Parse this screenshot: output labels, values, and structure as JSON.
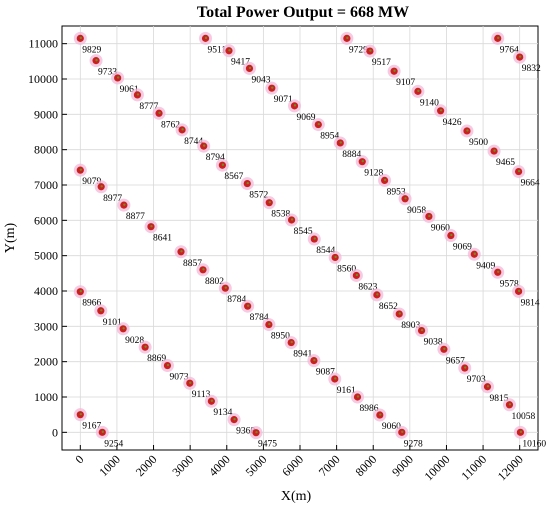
{
  "chart_data": {
    "type": "scatter",
    "title": "Total Power Output = 668 MW",
    "xlabel": "X(m)",
    "ylabel": "Y(m)",
    "xlim": [
      -500,
      12500
    ],
    "ylim": [
      -500,
      11500
    ],
    "xticks": [
      0,
      1000,
      2000,
      3000,
      4000,
      5000,
      6000,
      7000,
      8000,
      9000,
      10000,
      11000,
      12000
    ],
    "yticks": [
      0,
      1000,
      2000,
      3000,
      4000,
      5000,
      6000,
      7000,
      8000,
      9000,
      10000,
      11000
    ],
    "grid": true,
    "marker_color": "#cc1f1f",
    "marker_halo_color": "#f2b8d8",
    "points": [
      {
        "x": 0,
        "y": 11150,
        "label": "9829"
      },
      {
        "x": 430,
        "y": 10520,
        "label": "9733"
      },
      {
        "x": 1020,
        "y": 10030,
        "label": "9061"
      },
      {
        "x": 1560,
        "y": 9550,
        "label": "8777"
      },
      {
        "x": 2150,
        "y": 9030,
        "label": "8762"
      },
      {
        "x": 2780,
        "y": 8560,
        "label": "8744"
      },
      {
        "x": 3370,
        "y": 8100,
        "label": "8794"
      },
      {
        "x": 3880,
        "y": 7560,
        "label": "8567"
      },
      {
        "x": 4560,
        "y": 7040,
        "label": "8572"
      },
      {
        "x": 5160,
        "y": 6500,
        "label": "8538"
      },
      {
        "x": 5770,
        "y": 6010,
        "label": "8545"
      },
      {
        "x": 6390,
        "y": 5470,
        "label": "8544"
      },
      {
        "x": 6960,
        "y": 4950,
        "label": "8560"
      },
      {
        "x": 7540,
        "y": 4440,
        "label": "8623"
      },
      {
        "x": 8100,
        "y": 3890,
        "label": "8652"
      },
      {
        "x": 8710,
        "y": 3350,
        "label": "8903"
      },
      {
        "x": 9320,
        "y": 2880,
        "label": "9038"
      },
      {
        "x": 9930,
        "y": 2350,
        "label": "9657"
      },
      {
        "x": 10500,
        "y": 1820,
        "label": "9703"
      },
      {
        "x": 11120,
        "y": 1290,
        "label": "9815"
      },
      {
        "x": 11720,
        "y": 780,
        "label": "10058"
      },
      {
        "x": 12020,
        "y": 0,
        "label": "10160"
      },
      {
        "x": 3420,
        "y": 11150,
        "label": "9511"
      },
      {
        "x": 4060,
        "y": 10800,
        "label": "9417"
      },
      {
        "x": 4620,
        "y": 10300,
        "label": "9043"
      },
      {
        "x": 5230,
        "y": 9740,
        "label": "9071"
      },
      {
        "x": 5850,
        "y": 9240,
        "label": "9069"
      },
      {
        "x": 6500,
        "y": 8710,
        "label": "8954"
      },
      {
        "x": 7100,
        "y": 8190,
        "label": "8884"
      },
      {
        "x": 7700,
        "y": 7660,
        "label": "9128"
      },
      {
        "x": 8310,
        "y": 7130,
        "label": "8953"
      },
      {
        "x": 8870,
        "y": 6610,
        "label": "9058"
      },
      {
        "x": 9520,
        "y": 6110,
        "label": "9060"
      },
      {
        "x": 10120,
        "y": 5570,
        "label": "9069"
      },
      {
        "x": 10760,
        "y": 5040,
        "label": "9409"
      },
      {
        "x": 11400,
        "y": 4530,
        "label": "9578"
      },
      {
        "x": 11970,
        "y": 3990,
        "label": "9814"
      },
      {
        "x": 7280,
        "y": 11150,
        "label": "9729"
      },
      {
        "x": 7910,
        "y": 10790,
        "label": "9517"
      },
      {
        "x": 8570,
        "y": 10220,
        "label": "9107"
      },
      {
        "x": 9220,
        "y": 9650,
        "label": "9140"
      },
      {
        "x": 9840,
        "y": 9100,
        "label": "9426"
      },
      {
        "x": 10560,
        "y": 8530,
        "label": "9500"
      },
      {
        "x": 11300,
        "y": 7960,
        "label": "9465"
      },
      {
        "x": 11970,
        "y": 7380,
        "label": "9664"
      },
      {
        "x": 11400,
        "y": 11150,
        "label": "9764"
      },
      {
        "x": 12000,
        "y": 10620,
        "label": "9832"
      },
      {
        "x": 0,
        "y": 7420,
        "label": "9079"
      },
      {
        "x": 570,
        "y": 6950,
        "label": "8977"
      },
      {
        "x": 1190,
        "y": 6430,
        "label": "8877"
      },
      {
        "x": 1930,
        "y": 5820,
        "label": "8641"
      },
      {
        "x": 2750,
        "y": 5110,
        "label": "8857"
      },
      {
        "x": 3350,
        "y": 4600,
        "label": "8802"
      },
      {
        "x": 3960,
        "y": 4080,
        "label": "8784"
      },
      {
        "x": 4570,
        "y": 3570,
        "label": "8784"
      },
      {
        "x": 5150,
        "y": 3050,
        "label": "8950"
      },
      {
        "x": 5760,
        "y": 2540,
        "label": "8941"
      },
      {
        "x": 6380,
        "y": 2030,
        "label": "9087"
      },
      {
        "x": 6950,
        "y": 1510,
        "label": "9161"
      },
      {
        "x": 7570,
        "y": 1000,
        "label": "8986"
      },
      {
        "x": 8180,
        "y": 490,
        "label": "9060"
      },
      {
        "x": 8780,
        "y": 0,
        "label": "9278"
      },
      {
        "x": 0,
        "y": 3980,
        "label": "8966"
      },
      {
        "x": 560,
        "y": 3440,
        "label": "9101"
      },
      {
        "x": 1170,
        "y": 2930,
        "label": "9028"
      },
      {
        "x": 1770,
        "y": 2410,
        "label": "8869"
      },
      {
        "x": 2380,
        "y": 1890,
        "label": "9073"
      },
      {
        "x": 2990,
        "y": 1390,
        "label": "9113"
      },
      {
        "x": 3580,
        "y": 880,
        "label": "9134"
      },
      {
        "x": 4200,
        "y": 360,
        "label": "9368"
      },
      {
        "x": 4800,
        "y": -10,
        "label": "9475"
      },
      {
        "x": 0,
        "y": 500,
        "label": "9167"
      },
      {
        "x": 600,
        "y": 0,
        "label": "9254"
      }
    ]
  }
}
